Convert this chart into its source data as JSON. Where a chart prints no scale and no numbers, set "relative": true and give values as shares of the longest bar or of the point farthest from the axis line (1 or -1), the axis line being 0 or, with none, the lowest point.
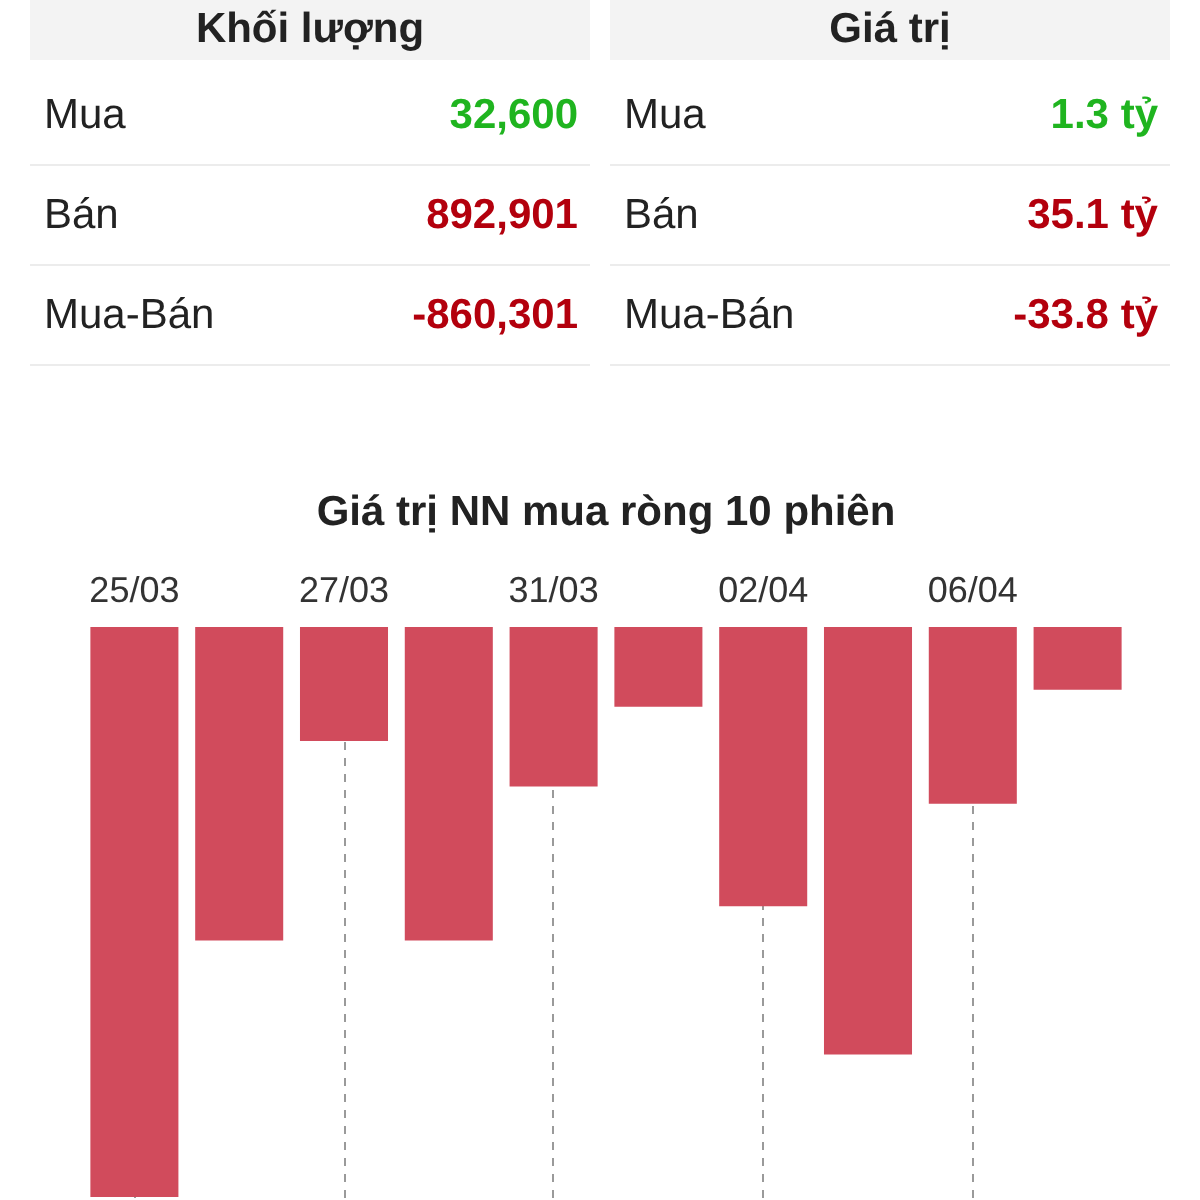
{
  "chart_data": [
    {
      "type": "other",
      "title": "Khối lượng",
      "categories": [
        "Mua",
        "Bán",
        "Mua-Bán"
      ],
      "value_labels": [
        "32,600",
        "892,901",
        "-860,301"
      ],
      "colors": [
        "#1fb41f",
        "#b3000d",
        "#b3000d"
      ]
    },
    {
      "type": "other",
      "title": "Giá trị",
      "categories": [
        "Mua",
        "Bán",
        "Mua-Bán"
      ],
      "value_labels": [
        "1.3 tỷ",
        "35.1 tỷ",
        "-33.8 tỷ"
      ],
      "colors": [
        "#1fb41f",
        "#b3000d",
        "#b3000d"
      ]
    },
    {
      "type": "bar",
      "title": "Giá trị NN mua ròng 10 phiên",
      "categories": [
        "25/03",
        null,
        "27/03",
        null,
        "31/03",
        null,
        "02/04",
        null,
        "06/04",
        null
      ],
      "values": [
        -1,
        -0.55,
        -0.2,
        -0.55,
        -0.28,
        -0.14,
        -0.49,
        -0.75,
        -0.31,
        -0.11
      ],
      "color": "#d14b5c",
      "relative": true,
      "grid": "x"
    }
  ]
}
